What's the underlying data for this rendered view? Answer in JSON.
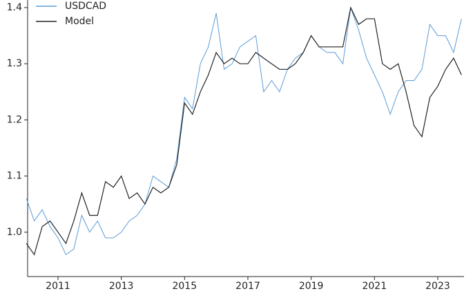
{
  "chart_data": {
    "type": "line",
    "x": [
      2010.0,
      2010.25,
      2010.5,
      2010.75,
      2011.0,
      2011.25,
      2011.5,
      2011.75,
      2012.0,
      2012.25,
      2012.5,
      2012.75,
      2013.0,
      2013.25,
      2013.5,
      2013.75,
      2014.0,
      2014.25,
      2014.5,
      2014.75,
      2015.0,
      2015.25,
      2015.5,
      2015.75,
      2016.0,
      2016.25,
      2016.5,
      2016.75,
      2017.0,
      2017.25,
      2017.5,
      2017.75,
      2018.0,
      2018.25,
      2018.5,
      2018.75,
      2019.0,
      2019.25,
      2019.5,
      2019.75,
      2020.0,
      2020.25,
      2020.5,
      2020.75,
      2021.0,
      2021.25,
      2021.5,
      2021.75,
      2022.0,
      2022.25,
      2022.5,
      2022.75,
      2023.0,
      2023.25,
      2023.5,
      2023.75
    ],
    "series": [
      {
        "name": "USDCAD",
        "color": "#5b9bd5",
        "values": [
          1.06,
          1.02,
          1.04,
          1.01,
          0.99,
          0.96,
          0.97,
          1.03,
          1.0,
          1.02,
          0.99,
          0.99,
          1.0,
          1.02,
          1.03,
          1.05,
          1.1,
          1.09,
          1.08,
          1.13,
          1.24,
          1.22,
          1.3,
          1.33,
          1.39,
          1.29,
          1.3,
          1.33,
          1.34,
          1.35,
          1.25,
          1.27,
          1.25,
          1.29,
          1.31,
          1.32,
          1.35,
          1.33,
          1.32,
          1.32,
          1.3,
          1.4,
          1.36,
          1.31,
          1.28,
          1.25,
          1.21,
          1.25,
          1.27,
          1.27,
          1.29,
          1.37,
          1.35,
          1.35,
          1.32,
          1.38
        ]
      },
      {
        "name": "Model",
        "color": "#222222",
        "values": [
          0.98,
          0.96,
          1.01,
          1.02,
          1.0,
          0.98,
          1.02,
          1.07,
          1.03,
          1.03,
          1.09,
          1.08,
          1.1,
          1.06,
          1.07,
          1.05,
          1.08,
          1.07,
          1.08,
          1.12,
          1.23,
          1.21,
          1.25,
          1.28,
          1.32,
          1.3,
          1.31,
          1.3,
          1.3,
          1.32,
          1.31,
          1.3,
          1.29,
          1.29,
          1.3,
          1.32,
          1.35,
          1.33,
          1.33,
          1.33,
          1.33,
          1.4,
          1.37,
          1.38,
          1.38,
          1.3,
          1.29,
          1.3,
          1.25,
          1.19,
          1.17,
          1.24,
          1.26,
          1.29,
          1.31,
          1.28
        ]
      }
    ],
    "xlim": [
      2010.04,
      2023.83
    ],
    "xticks": [
      2011,
      2013,
      2015,
      2017,
      2019,
      2021,
      2023
    ],
    "ylim": [
      0.921,
      1.4135
    ],
    "yticks": [
      {
        "value": 1.0,
        "label": "1.0"
      },
      {
        "value": 1.1,
        "label": "1.1"
      },
      {
        "value": 1.2,
        "label": "1.2"
      },
      {
        "value": 1.3,
        "label": "1.3"
      },
      {
        "value": 1.4,
        "label": "1.4"
      }
    ],
    "legend": "upper left"
  }
}
